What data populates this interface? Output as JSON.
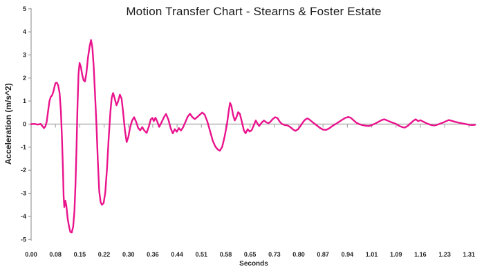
{
  "styling": {
    "background": "#ffffff",
    "series_color": "#E9138C",
    "axis_color": "#9b9b9b",
    "zero_line_color": "#b2b2b2",
    "tick_color": "#a8a8a8",
    "text_color": "#262626",
    "title_color": "#1a1a1a"
  },
  "chart_data": {
    "type": "line",
    "title": "Motion Transfer Chart - Stearns & Foster Estate",
    "xlabel": "Seconds",
    "ylabel": "Acceleration (m/s^2)",
    "ylim": [
      -5,
      5
    ],
    "xlim": [
      0,
      1.31
    ],
    "grid": "zero-line-only",
    "legend": "none",
    "y_ticks": [
      5,
      4,
      3,
      2,
      1,
      0,
      -1,
      -2,
      -3,
      -4,
      -5
    ],
    "x_tick_labels": [
      "0.00",
      "0.08",
      "0.15",
      "0.22",
      "0.30",
      "0.36",
      "0.44",
      "0.51",
      "0.58",
      "0.65",
      "0.73",
      "0.80",
      "0.87",
      "0.94",
      "1.01",
      "1.09",
      "1.16",
      "1.23",
      "1.31"
    ],
    "series": [
      {
        "name": "acceleration",
        "color": "#E9138C",
        "points": [
          [
            0.0,
            0.0
          ],
          [
            0.01,
            0.01
          ],
          [
            0.02,
            -0.02
          ],
          [
            0.028,
            0.01
          ],
          [
            0.034,
            -0.1
          ],
          [
            0.038,
            -0.17
          ],
          [
            0.042,
            -0.1
          ],
          [
            0.046,
            0.1
          ],
          [
            0.05,
            0.55
          ],
          [
            0.054,
            1.0
          ],
          [
            0.058,
            1.18
          ],
          [
            0.062,
            1.25
          ],
          [
            0.066,
            1.42
          ],
          [
            0.069,
            1.62
          ],
          [
            0.072,
            1.78
          ],
          [
            0.076,
            1.8
          ],
          [
            0.08,
            1.68
          ],
          [
            0.084,
            1.35
          ],
          [
            0.088,
            0.55
          ],
          [
            0.091,
            -0.6
          ],
          [
            0.094,
            -2.0
          ],
          [
            0.096,
            -3.1
          ],
          [
            0.098,
            -3.6
          ],
          [
            0.101,
            -3.32
          ],
          [
            0.104,
            -3.55
          ],
          [
            0.108,
            -4.1
          ],
          [
            0.112,
            -4.45
          ],
          [
            0.116,
            -4.68
          ],
          [
            0.12,
            -4.7
          ],
          [
            0.124,
            -4.45
          ],
          [
            0.128,
            -3.75
          ],
          [
            0.131,
            -2.6
          ],
          [
            0.134,
            -1.0
          ],
          [
            0.137,
            0.8
          ],
          [
            0.14,
            2.2
          ],
          [
            0.143,
            2.65
          ],
          [
            0.147,
            2.48
          ],
          [
            0.151,
            2.12
          ],
          [
            0.155,
            1.9
          ],
          [
            0.159,
            1.85
          ],
          [
            0.163,
            2.2
          ],
          [
            0.168,
            2.9
          ],
          [
            0.173,
            3.4
          ],
          [
            0.177,
            3.65
          ],
          [
            0.181,
            3.3
          ],
          [
            0.185,
            2.4
          ],
          [
            0.189,
            1.2
          ],
          [
            0.193,
            -0.1
          ],
          [
            0.197,
            -1.6
          ],
          [
            0.201,
            -2.9
          ],
          [
            0.205,
            -3.38
          ],
          [
            0.209,
            -3.5
          ],
          [
            0.214,
            -3.42
          ],
          [
            0.219,
            -2.95
          ],
          [
            0.224,
            -1.9
          ],
          [
            0.229,
            -0.6
          ],
          [
            0.234,
            0.55
          ],
          [
            0.238,
            1.15
          ],
          [
            0.242,
            1.35
          ],
          [
            0.247,
            1.1
          ],
          [
            0.252,
            0.82
          ],
          [
            0.257,
            1.0
          ],
          [
            0.262,
            1.28
          ],
          [
            0.267,
            1.1
          ],
          [
            0.272,
            0.45
          ],
          [
            0.277,
            -0.3
          ],
          [
            0.282,
            -0.78
          ],
          [
            0.287,
            -0.55
          ],
          [
            0.292,
            -0.15
          ],
          [
            0.298,
            0.15
          ],
          [
            0.304,
            0.3
          ],
          [
            0.31,
            0.1
          ],
          [
            0.316,
            -0.17
          ],
          [
            0.322,
            -0.27
          ],
          [
            0.328,
            -0.13
          ],
          [
            0.334,
            -0.28
          ],
          [
            0.341,
            -0.38
          ],
          [
            0.347,
            -0.12
          ],
          [
            0.353,
            0.2
          ],
          [
            0.358,
            0.27
          ],
          [
            0.362,
            0.13
          ],
          [
            0.367,
            0.28
          ],
          [
            0.372,
            0.12
          ],
          [
            0.378,
            -0.12
          ],
          [
            0.385,
            0.08
          ],
          [
            0.392,
            0.3
          ],
          [
            0.398,
            0.44
          ],
          [
            0.405,
            0.2
          ],
          [
            0.412,
            -0.18
          ],
          [
            0.418,
            -0.4
          ],
          [
            0.424,
            -0.22
          ],
          [
            0.43,
            -0.33
          ],
          [
            0.436,
            -0.17
          ],
          [
            0.442,
            -0.28
          ],
          [
            0.448,
            -0.15
          ],
          [
            0.455,
            0.08
          ],
          [
            0.462,
            0.32
          ],
          [
            0.469,
            0.45
          ],
          [
            0.476,
            0.3
          ],
          [
            0.483,
            0.22
          ],
          [
            0.49,
            0.3
          ],
          [
            0.497,
            0.4
          ],
          [
            0.505,
            0.5
          ],
          [
            0.512,
            0.42
          ],
          [
            0.52,
            0.12
          ],
          [
            0.528,
            -0.3
          ],
          [
            0.536,
            -0.72
          ],
          [
            0.544,
            -0.98
          ],
          [
            0.551,
            -1.1
          ],
          [
            0.557,
            -1.15
          ],
          [
            0.564,
            -0.98
          ],
          [
            0.571,
            -0.55
          ],
          [
            0.578,
            0.0
          ],
          [
            0.583,
            0.55
          ],
          [
            0.587,
            0.92
          ],
          [
            0.591,
            0.8
          ],
          [
            0.596,
            0.4
          ],
          [
            0.601,
            0.16
          ],
          [
            0.606,
            0.3
          ],
          [
            0.611,
            0.52
          ],
          [
            0.616,
            0.45
          ],
          [
            0.622,
            0.1
          ],
          [
            0.628,
            -0.28
          ],
          [
            0.633,
            -0.4
          ],
          [
            0.639,
            -0.22
          ],
          [
            0.645,
            -0.32
          ],
          [
            0.651,
            -0.26
          ],
          [
            0.657,
            -0.05
          ],
          [
            0.663,
            0.16
          ],
          [
            0.669,
            0.0
          ],
          [
            0.673,
            -0.08
          ],
          [
            0.68,
            0.06
          ],
          [
            0.687,
            0.16
          ],
          [
            0.694,
            0.08
          ],
          [
            0.7,
            0.04
          ],
          [
            0.706,
            0.1
          ],
          [
            0.713,
            0.22
          ],
          [
            0.72,
            0.3
          ],
          [
            0.727,
            0.26
          ],
          [
            0.734,
            0.1
          ],
          [
            0.741,
            0.0
          ],
          [
            0.749,
            -0.04
          ],
          [
            0.757,
            -0.06
          ],
          [
            0.765,
            -0.13
          ],
          [
            0.773,
            -0.23
          ],
          [
            0.78,
            -0.29
          ],
          [
            0.788,
            -0.22
          ],
          [
            0.796,
            -0.06
          ],
          [
            0.804,
            0.12
          ],
          [
            0.81,
            0.21
          ],
          [
            0.816,
            0.25
          ],
          [
            0.823,
            0.18
          ],
          [
            0.83,
            0.09
          ],
          [
            0.838,
            0.0
          ],
          [
            0.846,
            -0.09
          ],
          [
            0.854,
            -0.18
          ],
          [
            0.862,
            -0.24
          ],
          [
            0.871,
            -0.25
          ],
          [
            0.88,
            -0.18
          ],
          [
            0.889,
            -0.08
          ],
          [
            0.898,
            0.0
          ],
          [
            0.907,
            0.08
          ],
          [
            0.917,
            0.18
          ],
          [
            0.927,
            0.27
          ],
          [
            0.936,
            0.31
          ],
          [
            0.944,
            0.27
          ],
          [
            0.952,
            0.16
          ],
          [
            0.96,
            0.06
          ],
          [
            0.968,
            0.0
          ],
          [
            0.977,
            -0.04
          ],
          [
            0.987,
            -0.07
          ],
          [
            0.997,
            -0.08
          ],
          [
            1.006,
            -0.04
          ],
          [
            1.015,
            0.02
          ],
          [
            1.025,
            0.1
          ],
          [
            1.034,
            0.17
          ],
          [
            1.042,
            0.21
          ],
          [
            1.051,
            0.16
          ],
          [
            1.06,
            0.1
          ],
          [
            1.069,
            0.05
          ],
          [
            1.078,
            0.0
          ],
          [
            1.087,
            -0.08
          ],
          [
            1.095,
            -0.13
          ],
          [
            1.103,
            -0.15
          ],
          [
            1.111,
            -0.08
          ],
          [
            1.12,
            0.04
          ],
          [
            1.128,
            0.14
          ],
          [
            1.135,
            0.21
          ],
          [
            1.142,
            0.13
          ],
          [
            1.149,
            0.17
          ],
          [
            1.157,
            0.11
          ],
          [
            1.165,
            0.05
          ],
          [
            1.173,
            0.0
          ],
          [
            1.181,
            -0.04
          ],
          [
            1.19,
            -0.06
          ],
          [
            1.198,
            -0.03
          ],
          [
            1.207,
            0.02
          ],
          [
            1.216,
            0.07
          ],
          [
            1.225,
            0.13
          ],
          [
            1.233,
            0.18
          ],
          [
            1.242,
            0.14
          ],
          [
            1.251,
            0.1
          ],
          [
            1.26,
            0.07
          ],
          [
            1.27,
            0.04
          ],
          [
            1.28,
            0.01
          ],
          [
            1.29,
            -0.02
          ],
          [
            1.3,
            -0.04
          ],
          [
            1.31,
            -0.03
          ]
        ]
      }
    ]
  }
}
